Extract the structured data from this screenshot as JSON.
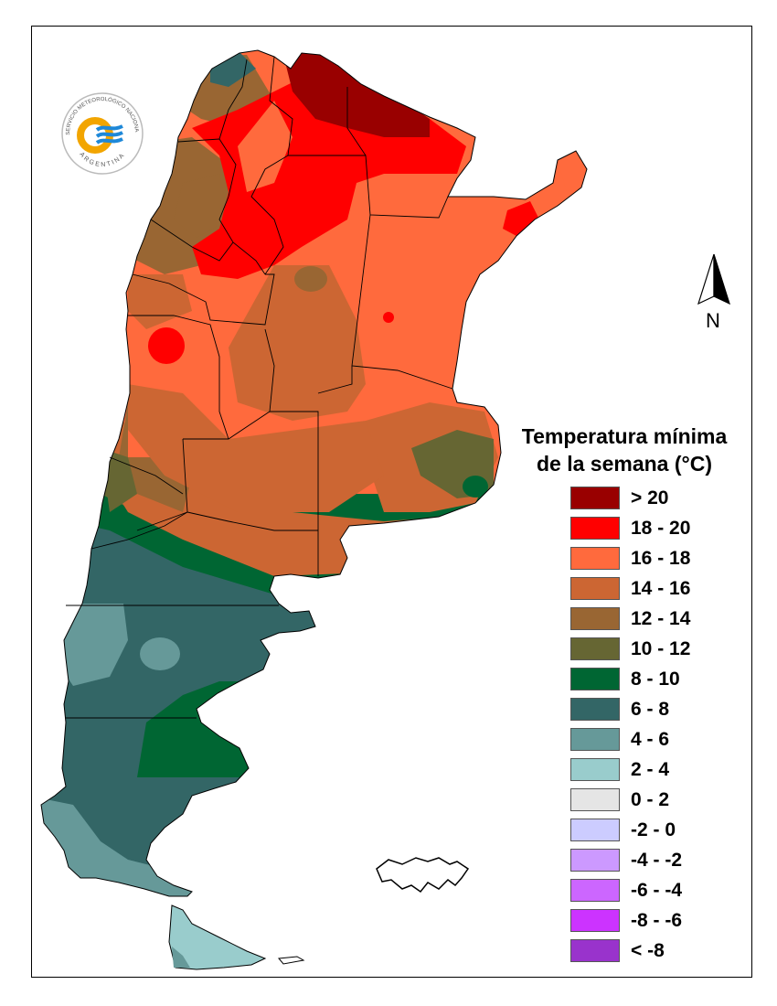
{
  "legend": {
    "title_line1": "Temperatura mínima",
    "title_line2": "de la semana (°C)",
    "items": [
      {
        "label": "> 20",
        "color": "#990000"
      },
      {
        "label": "18 - 20",
        "color": "#ff0000"
      },
      {
        "label": "16 - 18",
        "color": "#ff6a3d"
      },
      {
        "label": "14 - 16",
        "color": "#cc6633"
      },
      {
        "label": "12 - 14",
        "color": "#996633"
      },
      {
        "label": "10 - 12",
        "color": "#666633"
      },
      {
        "label": "8 - 10",
        "color": "#006633"
      },
      {
        "label": "6 - 8",
        "color": "#336666"
      },
      {
        "label": "4 - 6",
        "color": "#669999"
      },
      {
        "label": "2 - 4",
        "color": "#99cccc"
      },
      {
        "label": "0 - 2",
        "color": "#e5e5e5"
      },
      {
        "label": "-2 - 0",
        "color": "#ccccff"
      },
      {
        "label": "-4 - -2",
        "color": "#cc99ff"
      },
      {
        "label": "-6 - -4",
        "color": "#cc66ff"
      },
      {
        "label": "-8 - -6",
        "color": "#cc33ff"
      },
      {
        "label": "< -8",
        "color": "#9933cc"
      }
    ]
  },
  "north_arrow": {
    "label": "N"
  },
  "logo": {
    "org_text": "SERVICIO METEOROLÓGICO NACIONAL",
    "country_text": "ARGENTINA"
  }
}
